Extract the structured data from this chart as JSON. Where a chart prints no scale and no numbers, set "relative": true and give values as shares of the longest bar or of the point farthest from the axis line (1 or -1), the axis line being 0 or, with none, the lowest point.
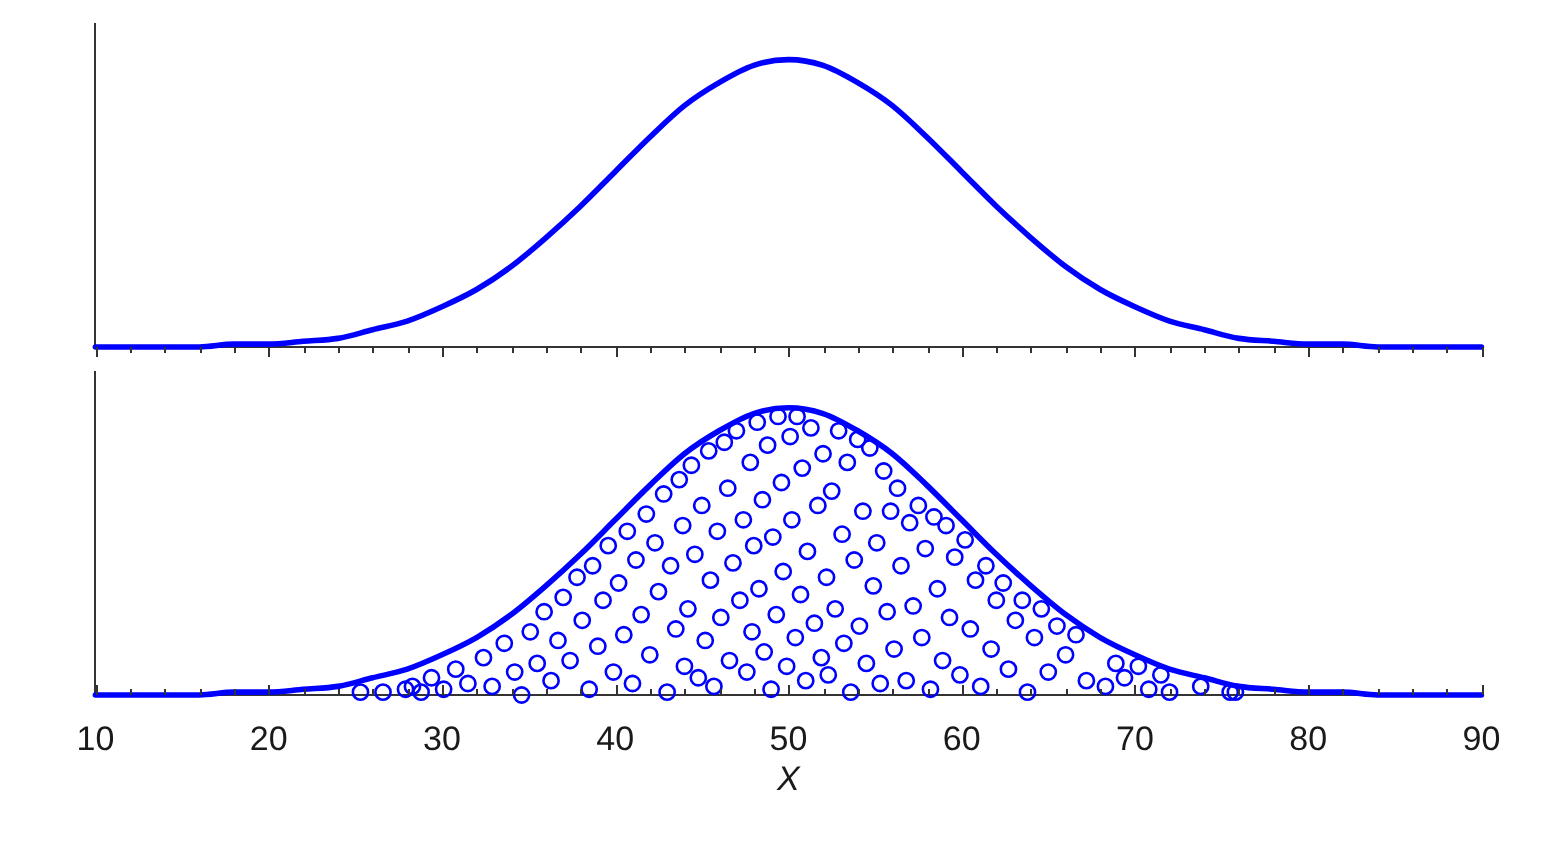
{
  "chart_data": [
    {
      "type": "line",
      "relative": true,
      "tick_labels": false,
      "xlim": [
        10,
        90
      ],
      "xticks": [
        10,
        {
          "value": 12,
          "label": null
        },
        {
          "value": 14,
          "label": null
        },
        {
          "value": 16,
          "label": null
        },
        {
          "value": 18,
          "label": null
        },
        20,
        {
          "value": 22,
          "label": null
        },
        {
          "value": 24,
          "label": null
        },
        {
          "value": 26,
          "label": null
        },
        {
          "value": 28,
          "label": null
        },
        30,
        {
          "value": 32,
          "label": null
        },
        {
          "value": 34,
          "label": null
        },
        {
          "value": 36,
          "label": null
        },
        {
          "value": 38,
          "label": null
        },
        40,
        {
          "value": 42,
          "label": null
        },
        {
          "value": 44,
          "label": null
        },
        {
          "value": 46,
          "label": null
        },
        {
          "value": 48,
          "label": null
        },
        50,
        {
          "value": 52,
          "label": null
        },
        {
          "value": 54,
          "label": null
        },
        {
          "value": 56,
          "label": null
        },
        {
          "value": 58,
          "label": null
        },
        60,
        {
          "value": 62,
          "label": null
        },
        {
          "value": 64,
          "label": null
        },
        {
          "value": 66,
          "label": null
        },
        {
          "value": 68,
          "label": null
        },
        70,
        {
          "value": 72,
          "label": null
        },
        {
          "value": 74,
          "label": null
        },
        {
          "value": 76,
          "label": null
        },
        {
          "value": 78,
          "label": null
        },
        80,
        {
          "value": 82,
          "label": null
        },
        {
          "value": 84,
          "label": null
        },
        {
          "value": 86,
          "label": null
        },
        {
          "value": 88,
          "label": null
        },
        90
      ],
      "series": [
        {
          "color": "#0000ff",
          "x": [
            10,
            12,
            14,
            16,
            18,
            20,
            22,
            24,
            26,
            28,
            30,
            32,
            34,
            36,
            38,
            40,
            42,
            44,
            46,
            48,
            50,
            52,
            54,
            56,
            58,
            60,
            62,
            64,
            66,
            68,
            70,
            72,
            74,
            76,
            78,
            80,
            82,
            84,
            86,
            88,
            90
          ],
          "values": [
            0,
            0,
            0,
            0,
            0.01,
            0.01,
            0.02,
            0.03,
            0.06,
            0.09,
            0.14,
            0.2,
            0.28,
            0.38,
            0.49,
            0.61,
            0.73,
            0.84,
            0.92,
            0.98,
            1,
            0.98,
            0.92,
            0.84,
            0.73,
            0.61,
            0.49,
            0.38,
            0.28,
            0.2,
            0.14,
            0.09,
            0.06,
            0.03,
            0.02,
            0.01,
            0.01,
            0,
            0,
            0,
            0
          ]
        }
      ]
    },
    {
      "type": "line",
      "relative": true,
      "tick_labels": "x",
      "xlabel": "X",
      "xlim": [
        10,
        90
      ],
      "xticks": [
        10,
        {
          "value": 12,
          "label": null
        },
        {
          "value": 14,
          "label": null
        },
        {
          "value": 16,
          "label": null
        },
        {
          "value": 18,
          "label": null
        },
        20,
        {
          "value": 22,
          "label": null
        },
        {
          "value": 24,
          "label": null
        },
        {
          "value": 26,
          "label": null
        },
        {
          "value": 28,
          "label": null
        },
        30,
        {
          "value": 32,
          "label": null
        },
        {
          "value": 34,
          "label": null
        },
        {
          "value": 36,
          "label": null
        },
        {
          "value": 38,
          "label": null
        },
        40,
        {
          "value": 42,
          "label": null
        },
        {
          "value": 44,
          "label": null
        },
        {
          "value": 46,
          "label": null
        },
        {
          "value": 48,
          "label": null
        },
        50,
        {
          "value": 52,
          "label": null
        },
        {
          "value": 54,
          "label": null
        },
        {
          "value": 56,
          "label": null
        },
        {
          "value": 58,
          "label": null
        },
        60,
        {
          "value": 62,
          "label": null
        },
        {
          "value": 64,
          "label": null
        },
        {
          "value": 66,
          "label": null
        },
        {
          "value": 68,
          "label": null
        },
        70,
        {
          "value": 72,
          "label": null
        },
        {
          "value": 74,
          "label": null
        },
        {
          "value": 76,
          "label": null
        },
        {
          "value": 78,
          "label": null
        },
        80,
        {
          "value": 82,
          "label": null
        },
        {
          "value": 84,
          "label": null
        },
        {
          "value": 86,
          "label": null
        },
        {
          "value": 88,
          "label": null
        },
        90
      ],
      "series": [
        {
          "color": "#0000ff",
          "x": [
            10,
            12,
            14,
            16,
            18,
            20,
            22,
            24,
            26,
            28,
            30,
            32,
            34,
            36,
            38,
            40,
            42,
            44,
            46,
            48,
            50,
            52,
            54,
            56,
            58,
            60,
            62,
            64,
            66,
            68,
            70,
            72,
            74,
            76,
            78,
            80,
            82,
            84,
            86,
            88,
            90
          ],
          "values": [
            0,
            0,
            0,
            0,
            0.01,
            0.01,
            0.02,
            0.03,
            0.06,
            0.09,
            0.14,
            0.2,
            0.28,
            0.38,
            0.49,
            0.61,
            0.73,
            0.84,
            0.92,
            0.98,
            1,
            0.98,
            0.92,
            0.84,
            0.73,
            0.61,
            0.49,
            0.38,
            0.28,
            0.2,
            0.14,
            0.09,
            0.06,
            0.03,
            0.02,
            0.01,
            0.01,
            0,
            0,
            0,
            0
          ]
        },
        {
          "type": "scatter",
          "color": "#0000ff",
          "marker": "circle",
          "x": [
            25.3,
            26.6,
            27.9,
            28.3,
            28.8,
            29.4,
            30.1,
            30.8,
            31.5,
            32.4,
            32.9,
            33.6,
            34.2,
            34.6,
            35.1,
            35.5,
            35.9,
            36.3,
            36.7,
            37.0,
            37.4,
            37.8,
            38.1,
            38.5,
            38.7,
            39.0,
            39.3,
            39.6,
            39.9,
            40.2,
            40.5,
            40.7,
            41.0,
            41.2,
            41.5,
            41.8,
            42.0,
            42.3,
            42.5,
            42.8,
            43.0,
            43.2,
            43.5,
            43.7,
            43.9,
            44.0,
            44.2,
            44.4,
            44.6,
            44.8,
            45.0,
            45.2,
            45.4,
            45.5,
            45.7,
            45.9,
            46.1,
            46.3,
            46.5,
            46.6,
            46.8,
            47.0,
            47.2,
            47.4,
            47.6,
            47.8,
            47.9,
            48.0,
            48.2,
            48.3,
            48.5,
            48.6,
            48.8,
            49.0,
            49.1,
            49.3,
            49.4,
            49.6,
            49.7,
            49.9,
            50.1,
            50.2,
            50.4,
            50.5,
            50.7,
            50.8,
            51.0,
            51.1,
            51.3,
            51.5,
            51.7,
            51.9,
            52.0,
            52.2,
            52.3,
            52.5,
            52.7,
            52.9,
            53.1,
            53.2,
            53.4,
            53.6,
            53.8,
            54.0,
            54.1,
            54.3,
            54.5,
            54.7,
            54.9,
            55.1,
            55.3,
            55.5,
            55.7,
            55.9,
            56.1,
            56.3,
            56.5,
            56.8,
            57.0,
            57.2,
            57.5,
            57.7,
            57.9,
            58.2,
            58.4,
            58.6,
            58.9,
            59.1,
            59.3,
            59.6,
            59.9,
            60.2,
            60.5,
            60.8,
            61.1,
            61.4,
            61.7,
            62.0,
            62.4,
            62.7,
            63.1,
            63.5,
            63.8,
            64.2,
            64.6,
            65.0,
            65.5,
            66.0,
            66.6,
            67.2,
            68.3,
            68.9,
            69.4,
            70.2,
            70.8,
            71.5,
            72.0,
            73.8,
            75.5,
            75.8
          ],
          "values": [
            0.01,
            0.01,
            0.02,
            0.03,
            0.01,
            0.06,
            0.02,
            0.09,
            0.04,
            0.13,
            0.03,
            0.18,
            0.08,
            0,
            0.22,
            0.11,
            0.29,
            0.05,
            0.19,
            0.34,
            0.12,
            0.41,
            0.26,
            0.02,
            0.45,
            0.17,
            0.33,
            0.52,
            0.08,
            0.39,
            0.21,
            0.57,
            0.04,
            0.47,
            0.28,
            0.63,
            0.14,
            0.53,
            0.36,
            0.7,
            0.01,
            0.45,
            0.23,
            0.75,
            0.59,
            0.1,
            0.3,
            0.8,
            0.49,
            0.06,
            0.66,
            0.19,
            0.85,
            0.4,
            0.03,
            0.57,
            0.27,
            0.88,
            0.72,
            0.12,
            0.46,
            0.92,
            0.33,
            0.61,
            0.08,
            0.81,
            0.22,
            0.52,
            0.95,
            0.37,
            0.68,
            0.15,
            0.87,
            0.02,
            0.55,
            0.28,
            0.97,
            0.74,
            0.43,
            0.1,
            0.9,
            0.61,
            0.2,
            0.97,
            0.35,
            0.79,
            0.05,
            0.5,
            0.93,
            0.25,
            0.66,
            0.13,
            0.84,
            0.41,
            0.07,
            0.71,
            0.3,
            0.92,
            0.56,
            0.18,
            0.81,
            0.01,
            0.47,
            0.89,
            0.24,
            0.64,
            0.11,
            0.86,
            0.38,
            0.53,
            0.04,
            0.78,
            0.29,
            0.64,
            0.16,
            0.72,
            0.45,
            0.05,
            0.6,
            0.31,
            0.66,
            0.2,
            0.51,
            0.02,
            0.62,
            0.37,
            0.12,
            0.59,
            0.27,
            0.48,
            0.07,
            0.54,
            0.23,
            0.4,
            0.03,
            0.45,
            0.16,
            0.33,
            0.39,
            0.09,
            0.26,
            0.33,
            0.01,
            0.2,
            0.3,
            0.08,
            0.24,
            0.14,
            0.21,
            0.05,
            0.03,
            0.11,
            0.06,
            0.1,
            0.02,
            0.07,
            0.01,
            0.03,
            0.01,
            0.01
          ]
        }
      ]
    }
  ]
}
